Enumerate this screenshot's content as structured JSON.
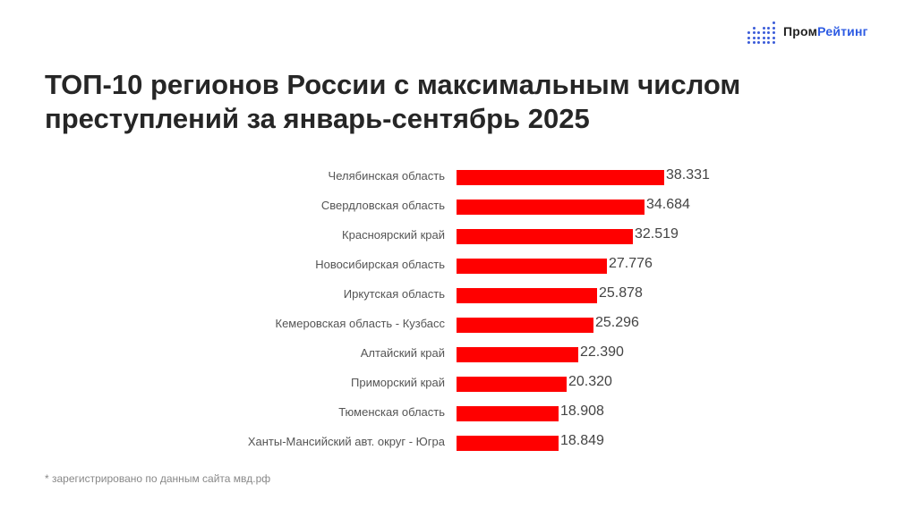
{
  "brand": {
    "part1": "Пром",
    "part2": "Рейтинг",
    "icon": "bar-dots-logo-icon",
    "accent": "#2d5be3"
  },
  "title": "ТОП-10 регионов России с максимальным числом преступлений за январь-сентябрь 2025",
  "footnote": "* зарегистрировано по данным сайта мвд.рф",
  "bar_color": "#ff0000",
  "chart_data": {
    "type": "bar",
    "orientation": "horizontal",
    "title": "ТОП-10 регионов России с максимальным числом преступлений за январь-сентябрь 2025",
    "xlabel": "",
    "ylabel": "",
    "grid": false,
    "legend": null,
    "categories": [
      "Челябинская область",
      "Свердловская область",
      "Красноярский край",
      "Новосибирская область",
      "Иркутская область",
      "Кемеровская область - Кузбасс",
      "Алтайский край",
      "Приморский край",
      "Тюменская область",
      "Ханты-Мансийский авт. округ - Югра"
    ],
    "values": [
      38331,
      34684,
      32519,
      27776,
      25878,
      25296,
      22390,
      20320,
      18908,
      18849
    ],
    "value_labels": [
      "38.331",
      "34.684",
      "32.519",
      "27.776",
      "25.878",
      "25.296",
      "22.390",
      "20.320",
      "18.908",
      "18.849"
    ]
  }
}
